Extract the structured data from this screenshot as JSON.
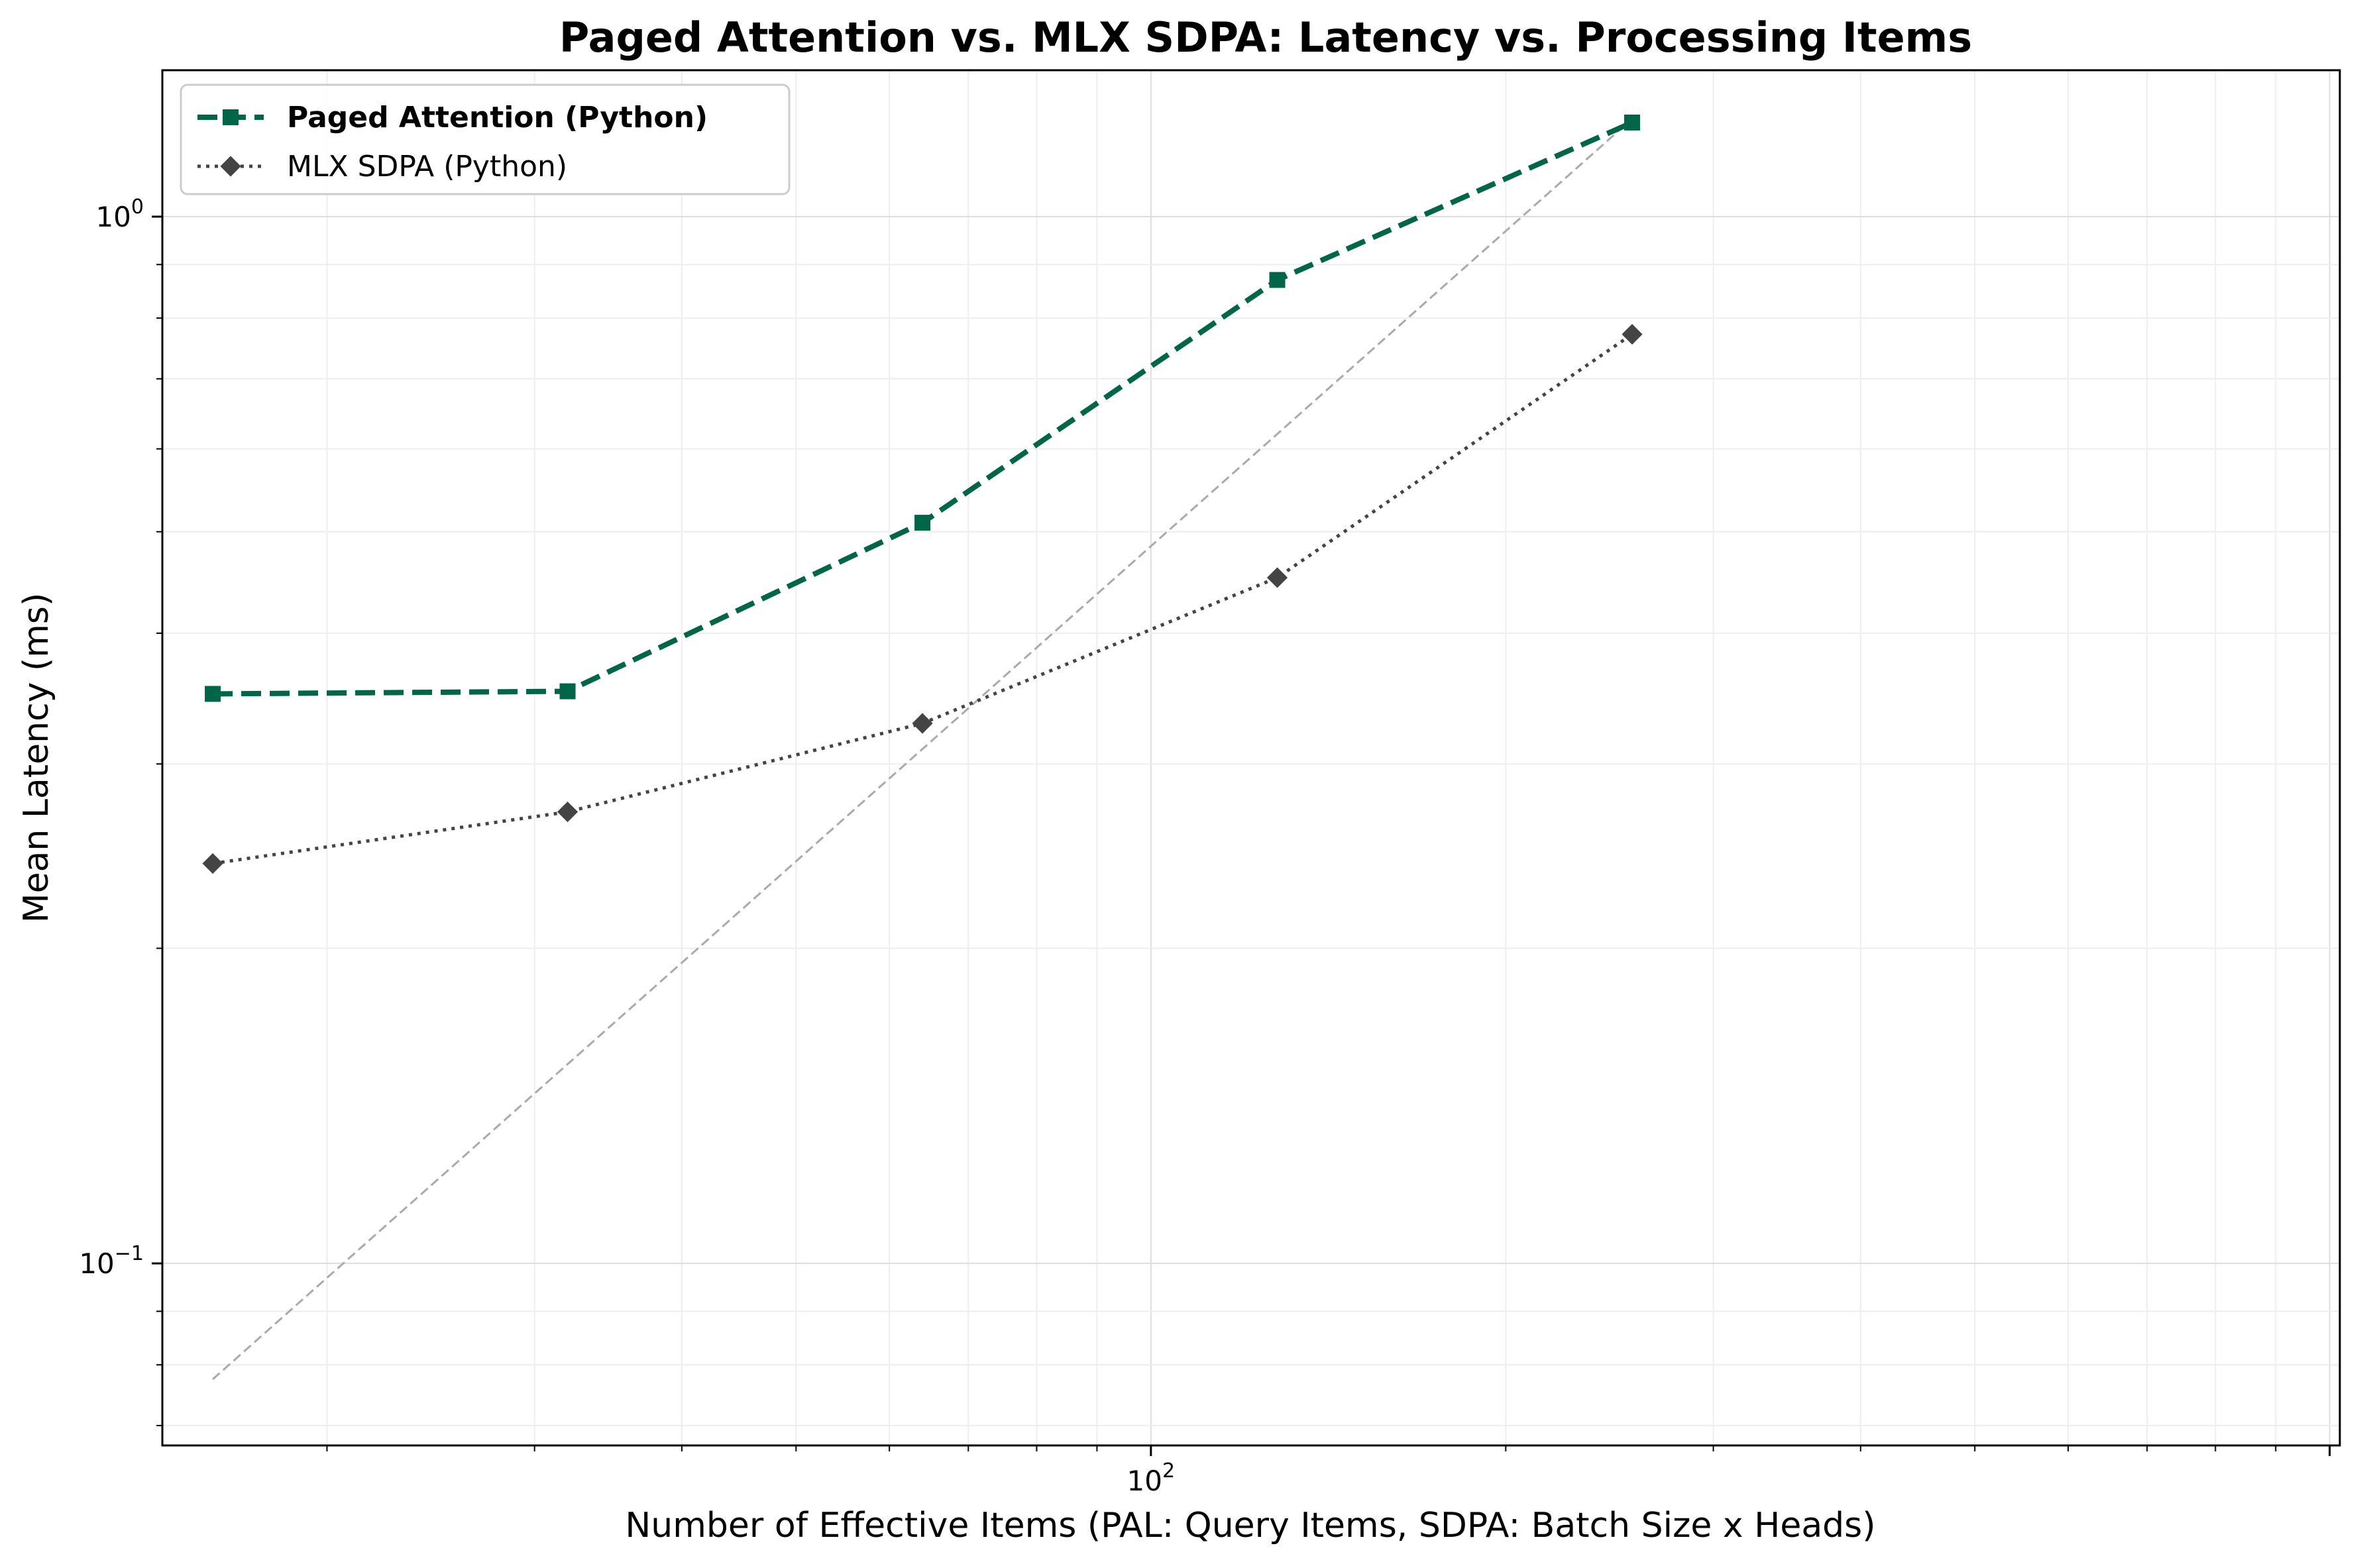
{
  "chart_data": {
    "type": "line",
    "title": "Paged Attention vs. MLX SDPA: Latency vs. Processing Items",
    "xlabel": "Number of Effective Items (PAL: Query Items, SDPA: Batch Size x Heads)",
    "ylabel": "Mean Latency (ms)",
    "x_scale": "log",
    "y_scale": "log",
    "xlim": [
      14.5,
      1020
    ],
    "ylim": [
      0.067,
      1.38
    ],
    "x_ticks": [
      {
        "value": 100,
        "label": "10",
        "exp": "2"
      }
    ],
    "y_ticks": [
      {
        "value": 0.1,
        "label": "10",
        "exp": "−1"
      },
      {
        "value": 1,
        "label": "10",
        "exp": "0"
      }
    ],
    "grid": true,
    "legend": "upper-left",
    "series": [
      {
        "name": "Paged Attention (Python)",
        "color": "#006647",
        "marker": "square",
        "line_style": "dashed",
        "x": [
          16,
          32,
          64,
          128,
          256
        ],
        "y": [
          0.35,
          0.352,
          0.51,
          0.87,
          1.23
        ]
      },
      {
        "name": "MLX SDPA (Python)",
        "color": "#444444",
        "marker": "diamond",
        "line_style": "dotted",
        "x": [
          16,
          32,
          64,
          128,
          256
        ],
        "y": [
          0.241,
          0.27,
          0.328,
          0.452,
          0.772
        ]
      }
    ],
    "reference_line": {
      "color": "#aaaaaa",
      "x": [
        16,
        256
      ],
      "y": [
        0.0775,
        1.24
      ]
    }
  }
}
